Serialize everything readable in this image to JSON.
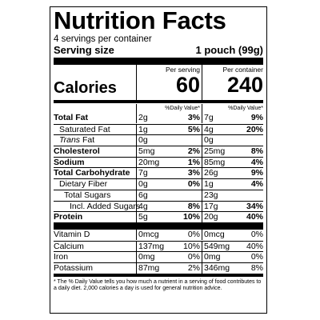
{
  "title": "Nutrition Facts",
  "servings_per_container": "4 servings per container",
  "serving_size_label": "Serving size",
  "serving_size_value": "1 pouch (99g)",
  "calories": {
    "label": "Calories",
    "col1_header": "Per serving",
    "col2_header": "Per container",
    "per_serving": "60",
    "per_container": "240"
  },
  "dv_header": "%Daily Value*",
  "nutrients_main": [
    {
      "label": "Total Fat",
      "bold": true,
      "indent": 0,
      "amt1": "2g",
      "pct1": "3%",
      "amt2": "7g",
      "pct2": "9%"
    },
    {
      "label": "Saturated Fat",
      "bold": false,
      "indent": 1,
      "amt1": "1g",
      "pct1": "5%",
      "amt2": "4g",
      "pct2": "20%"
    },
    {
      "label_italic": "Trans",
      "label": " Fat",
      "bold": false,
      "indent": 1,
      "amt1": "0g",
      "pct1": "",
      "amt2": "0g",
      "pct2": ""
    },
    {
      "label": "Cholesterol",
      "bold": true,
      "indent": 0,
      "amt1": "5mg",
      "pct1": "2%",
      "amt2": "25mg",
      "pct2": "8%"
    },
    {
      "label": "Sodium",
      "bold": true,
      "indent": 0,
      "amt1": "20mg",
      "pct1": "1%",
      "amt2": "85mg",
      "pct2": "4%"
    },
    {
      "label": "Total Carbohydrate",
      "bold": true,
      "indent": 0,
      "amt1": "7g",
      "pct1": "3%",
      "amt2": "26g",
      "pct2": "9%"
    },
    {
      "label": "Dietary Fiber",
      "bold": false,
      "indent": 1,
      "amt1": "0g",
      "pct1": "0%",
      "amt2": "1g",
      "pct2": "4%"
    },
    {
      "label": "Total Sugars",
      "bold": false,
      "indent": 2,
      "amt1": "6g",
      "pct1": "",
      "amt2": "23g",
      "pct2": ""
    },
    {
      "label": "Incl. Added Sugars",
      "bold": false,
      "indent": 3,
      "amt1": "4g",
      "pct1": "8%",
      "amt2": "17g",
      "pct2": "34%"
    },
    {
      "label": "Protein",
      "bold": true,
      "indent": 0,
      "amt1": "5g",
      "pct1": "10%",
      "amt2": "20g",
      "pct2": "40%"
    }
  ],
  "nutrients_vitamins": [
    {
      "label": "Vitamin D",
      "amt1": "0mcg",
      "pct1": "0%",
      "amt2": "0mcg",
      "pct2": "0%"
    },
    {
      "label": "Calcium",
      "amt1": "137mg",
      "pct1": "10%",
      "amt2": "549mg",
      "pct2": "40%"
    },
    {
      "label": "Iron",
      "amt1": "0mg",
      "pct1": "0%",
      "amt2": "0mg",
      "pct2": "0%"
    },
    {
      "label": "Potassium",
      "amt1": "87mg",
      "pct1": "2%",
      "amt2": "346mg",
      "pct2": "8%"
    }
  ],
  "footnote": "* The % Daily Value tells you how much a nutrient in a serving of food contributes to a daily diet. 2,000 calories a day is used for general nutrition advice."
}
